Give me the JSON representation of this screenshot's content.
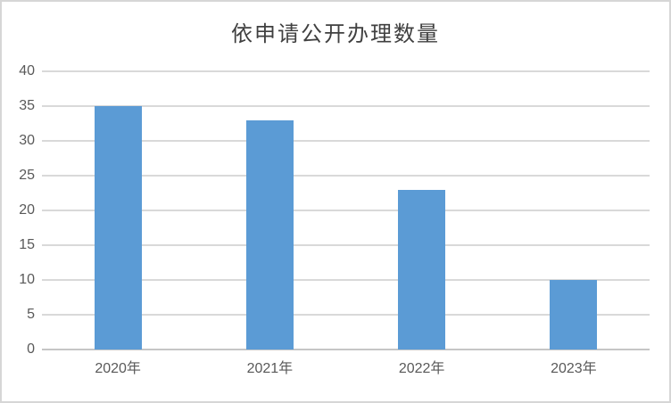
{
  "chart": {
    "title": "依申请公开办理数量",
    "colors": {
      "bar": "#5b9bd5",
      "gridline": "#d9d9d9",
      "axis_line": "#c6c6c6",
      "tick_label": "#595959",
      "title_text": "#404040",
      "frame_border": "#d6d6d6",
      "background": "#ffffff"
    }
  },
  "chart_data": {
    "type": "bar",
    "title": "依申请公开办理数量",
    "categories": [
      "2020年",
      "2021年",
      "2022年",
      "2023年"
    ],
    "values": [
      35,
      33,
      23,
      10
    ],
    "xlabel": "",
    "ylabel": "",
    "ylim": [
      0,
      40
    ],
    "yticks": [
      0,
      5,
      10,
      15,
      20,
      25,
      30,
      35,
      40
    ],
    "grid": true,
    "legend": false,
    "bar_color": "#5b9bd5"
  }
}
